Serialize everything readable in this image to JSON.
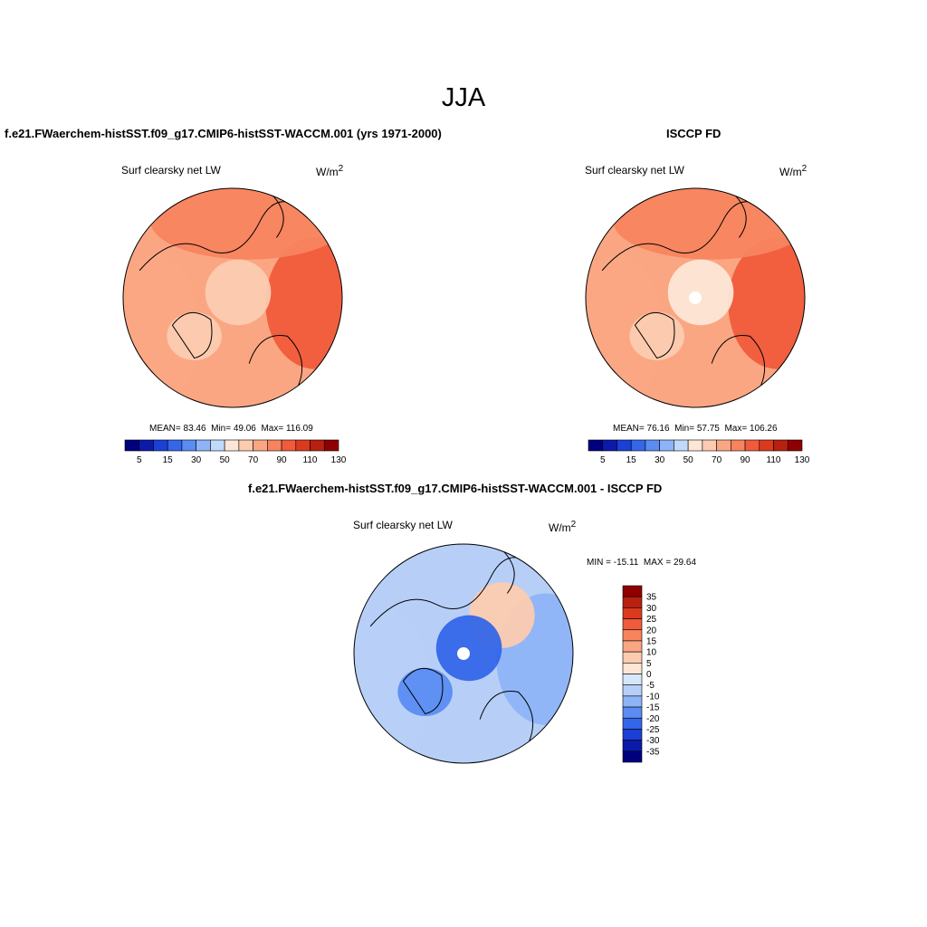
{
  "figure": {
    "title": "JJA"
  },
  "panels": [
    {
      "id": "model",
      "title": "f.e21.FWaerchem-histSST.f09_g17.CMIP6-histSST-WACCM.001 (yrs 1971-2000)",
      "variable": "Surf clearsky net LW",
      "units": "W/m",
      "units_exp": "2",
      "stats": {
        "mean_label": "MEAN=",
        "mean": "83.46",
        "min_label": "Min=",
        "min": "49.06",
        "max_label": "Max=",
        "max": "116.09"
      }
    },
    {
      "id": "obs",
      "title": "ISCCP FD",
      "variable": "Surf clearsky net LW",
      "units": "W/m",
      "units_exp": "2",
      "stats": {
        "mean_label": "MEAN=",
        "mean": "76.16",
        "min_label": "Min=",
        "min": "57.75",
        "max_label": "Max=",
        "max": "106.26"
      }
    },
    {
      "id": "diff",
      "title": "f.e21.FWaerchem-histSST.f09_g17.CMIP6-histSST-WACCM.001 - ISCCP FD",
      "variable": "Surf clearsky net LW",
      "units": "W/m",
      "units_exp": "2",
      "stats": {
        "min_label": "MIN =",
        "min": "-15.11",
        "max_label": "MAX =",
        "max": "29.64"
      }
    }
  ],
  "chart_data": [
    {
      "type": "heatmap",
      "projection": "north-polar-stereographic",
      "title": "f.e21.FWaerchem-histSST.f09_g17.CMIP6-histSST-WACCM.001 (yrs 1971-2000)",
      "variable": "Surf clearsky net LW",
      "units": "W/m2",
      "mean": 83.46,
      "min": 49.06,
      "max": 116.09,
      "colorbar": {
        "orientation": "horizontal",
        "levels": [
          5,
          10,
          15,
          20,
          30,
          40,
          50,
          60,
          70,
          80,
          90,
          100,
          110,
          120,
          130
        ],
        "tick_labels": [
          "5",
          "15",
          "30",
          "50",
          "70",
          "90",
          "110",
          "130"
        ]
      },
      "regions": {
        "central-arctic": 72,
        "north-atlantic": 100,
        "eurasia": 95,
        "north-america": 85,
        "greenland": 75
      }
    },
    {
      "type": "heatmap",
      "projection": "north-polar-stereographic",
      "title": "ISCCP FD",
      "variable": "Surf clearsky net LW",
      "units": "W/m2",
      "mean": 76.16,
      "min": 57.75,
      "max": 106.26,
      "colorbar": {
        "orientation": "horizontal",
        "levels": [
          5,
          10,
          15,
          20,
          30,
          40,
          50,
          60,
          70,
          80,
          90,
          100,
          110,
          120,
          130
        ],
        "tick_labels": [
          "5",
          "15",
          "30",
          "50",
          "70",
          "90",
          "110",
          "130"
        ]
      },
      "regions": {
        "central-arctic": 62,
        "north-atlantic": 100,
        "eurasia": 90,
        "north-america": 85,
        "greenland": 70
      }
    },
    {
      "type": "heatmap",
      "projection": "north-polar-stereographic",
      "title": "f.e21.FWaerchem-histSST.f09_g17.CMIP6-histSST-WACCM.001 - ISCCP FD",
      "variable": "Surf clearsky net LW",
      "units": "W/m2",
      "min": -15.11,
      "max": 29.64,
      "colorbar": {
        "orientation": "vertical",
        "levels": [
          -35,
          -30,
          -25,
          -20,
          -15,
          -10,
          -5,
          0,
          5,
          10,
          15,
          20,
          25,
          30,
          35
        ],
        "tick_labels": [
          "35",
          "30",
          "25",
          "20",
          "15",
          "10",
          "5",
          "0",
          "-5",
          "-10",
          "-15",
          "-20",
          "-25",
          "-30",
          "-35"
        ]
      },
      "regions": {
        "central-arctic": 20,
        "north-atlantic": 10,
        "siberia": -8,
        "north-america": 5,
        "greenland": 15
      }
    }
  ],
  "palettes": {
    "abs": [
      "#00007f",
      "#0b1aa8",
      "#1c3fd6",
      "#3466e8",
      "#5a8cf2",
      "#8db4f7",
      "#c1d9fb",
      "#fde6d6",
      "#fccbb0",
      "#fba683",
      "#f7845f",
      "#f05b3b",
      "#db3a1f",
      "#b8200f",
      "#900000"
    ],
    "diff": [
      "#900000",
      "#b8200f",
      "#db3a1f",
      "#f05b3b",
      "#f7845f",
      "#fba683",
      "#fccbb0",
      "#fde6d6",
      "#d6e6fb",
      "#b7cff7",
      "#8db4f7",
      "#5a8cf2",
      "#3466e8",
      "#1c3fd6",
      "#0b1aa8",
      "#00007f"
    ]
  }
}
